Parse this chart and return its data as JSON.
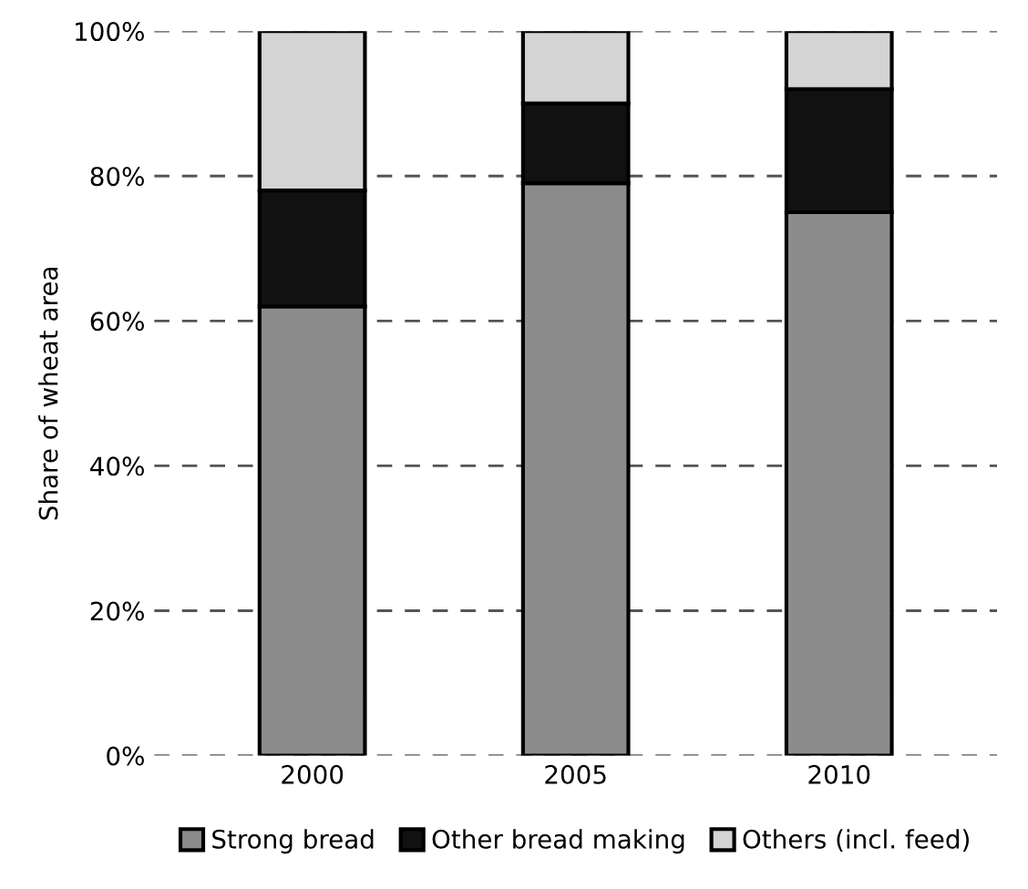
{
  "chart_data": {
    "type": "bar",
    "stacked": true,
    "ylabel": "Share of wheat area",
    "categories": [
      "2000",
      "2005",
      "2010"
    ],
    "series": [
      {
        "name": "Strong bread",
        "color": "#8c8c8c",
        "values": [
          62,
          79,
          75
        ]
      },
      {
        "name": "Other bread making",
        "color": "#111111",
        "values": [
          16,
          11,
          17
        ]
      },
      {
        "name": "Others (incl. feed)",
        "color": "#d4d4d4",
        "values": [
          22,
          10,
          8
        ]
      }
    ],
    "ylim": [
      0,
      100
    ],
    "yticks": [
      {
        "value": 0,
        "label": "0%"
      },
      {
        "value": 20,
        "label": "20%"
      },
      {
        "value": 40,
        "label": "40%"
      },
      {
        "value": 60,
        "label": "60%"
      },
      {
        "value": 80,
        "label": "80%"
      },
      {
        "value": 100,
        "label": "100%"
      }
    ],
    "grid": "y",
    "legend": "bottom"
  }
}
